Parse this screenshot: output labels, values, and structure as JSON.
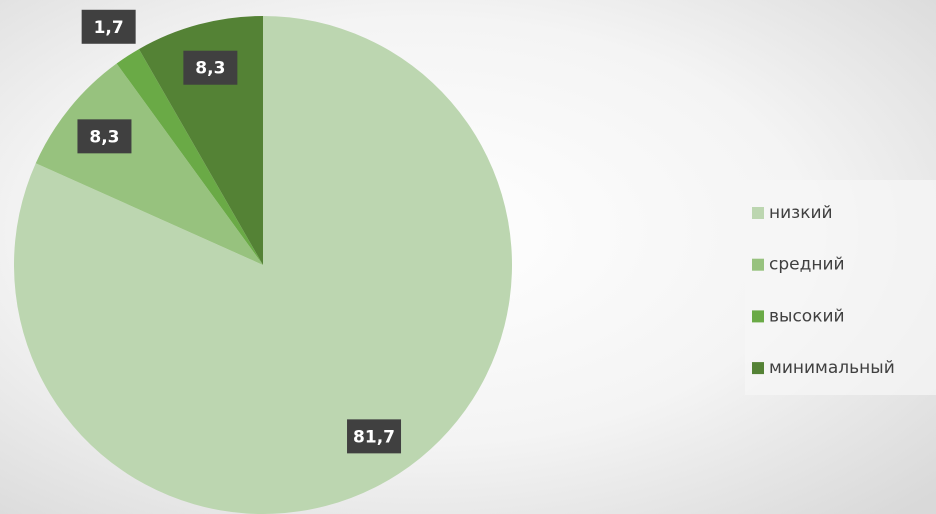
{
  "chart_data": {
    "type": "pie",
    "categories": [
      "низкий",
      "средний",
      "высокий",
      "минимальный"
    ],
    "values": [
      81.7,
      8.3,
      1.7,
      8.3
    ],
    "value_labels": [
      "81,7",
      "8,3",
      "1,7",
      "8,3"
    ],
    "colors": [
      "#bcd6b0",
      "#97c27e",
      "#6aaa46",
      "#548235"
    ],
    "legend": "right"
  }
}
